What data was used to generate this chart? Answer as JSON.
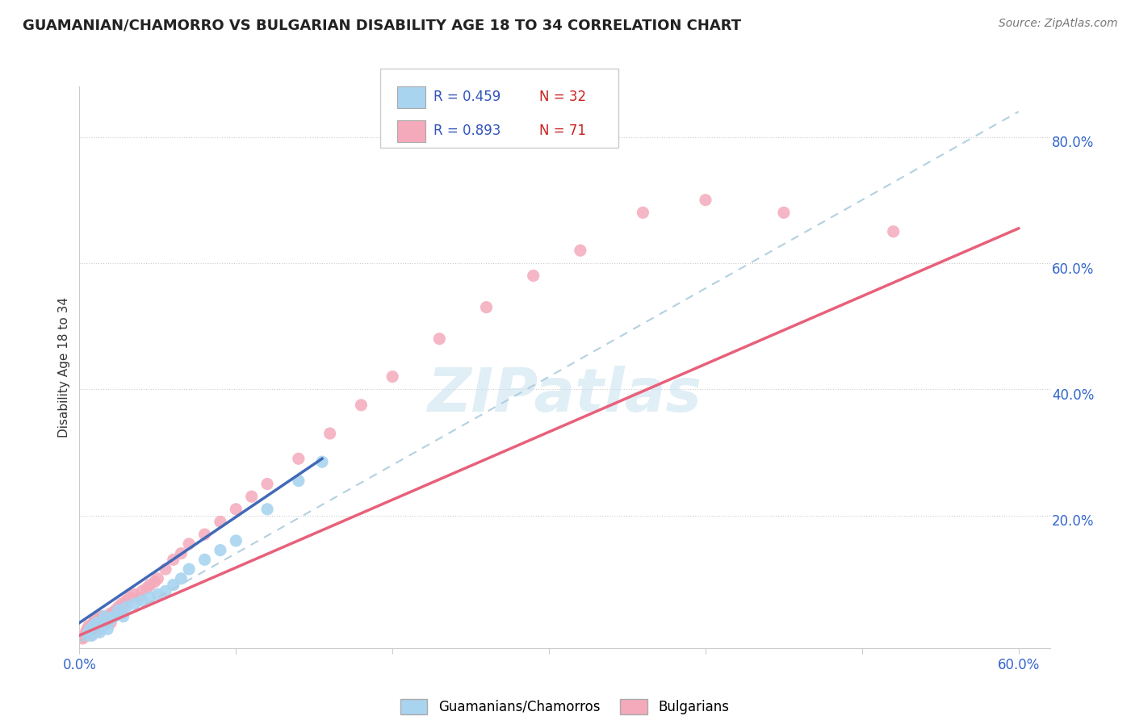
{
  "title": "GUAMANIAN/CHAMORRO VS BULGARIAN DISABILITY AGE 18 TO 34 CORRELATION CHART",
  "source": "Source: ZipAtlas.com",
  "ylabel": "Disability Age 18 to 34",
  "xlim": [
    0.0,
    0.62
  ],
  "ylim": [
    -0.01,
    0.88
  ],
  "xticks": [
    0.0,
    0.1,
    0.2,
    0.3,
    0.4,
    0.5,
    0.6
  ],
  "xtick_labels": [
    "0.0%",
    "",
    "",
    "",
    "",
    "",
    "60.0%"
  ],
  "yticks_right": [
    0.2,
    0.4,
    0.6,
    0.8
  ],
  "ytick_labels_right": [
    "20.0%",
    "40.0%",
    "60.0%",
    "80.0%"
  ],
  "background_color": "#ffffff",
  "guamanian_color": "#A8D4F0",
  "bulgarian_color": "#F4AABB",
  "guamanian_line_color": "#4169B8",
  "bulgarian_line_color": "#E8607A",
  "dashed_line_color": "#AACCDD",
  "legend_r_guamanian": "R = 0.459",
  "legend_n_guamanian": "N = 32",
  "legend_r_bulgarian": "R = 0.893",
  "legend_n_bulgarian": "N = 71",
  "watermark": "ZIPatlas",
  "r_color": "#3355BB",
  "n_color": "#CC2222",
  "guamanian_points_x": [
    0.005,
    0.006,
    0.007,
    0.008,
    0.009,
    0.01,
    0.011,
    0.012,
    0.013,
    0.015,
    0.016,
    0.017,
    0.018,
    0.02,
    0.022,
    0.025,
    0.028,
    0.03,
    0.035,
    0.04,
    0.045,
    0.05,
    0.055,
    0.06,
    0.065,
    0.07,
    0.08,
    0.09,
    0.1,
    0.12,
    0.14,
    0.155
  ],
  "guamanian_points_y": [
    0.01,
    0.015,
    0.02,
    0.01,
    0.025,
    0.02,
    0.03,
    0.025,
    0.015,
    0.025,
    0.04,
    0.03,
    0.02,
    0.035,
    0.04,
    0.05,
    0.04,
    0.055,
    0.06,
    0.065,
    0.07,
    0.075,
    0.08,
    0.09,
    0.1,
    0.115,
    0.13,
    0.145,
    0.16,
    0.21,
    0.255,
    0.285
  ],
  "bulgarian_points_x": [
    0.002,
    0.003,
    0.004,
    0.004,
    0.005,
    0.005,
    0.006,
    0.006,
    0.007,
    0.007,
    0.008,
    0.008,
    0.009,
    0.009,
    0.01,
    0.01,
    0.01,
    0.011,
    0.011,
    0.012,
    0.012,
    0.013,
    0.013,
    0.014,
    0.014,
    0.015,
    0.015,
    0.016,
    0.016,
    0.017,
    0.018,
    0.018,
    0.019,
    0.02,
    0.02,
    0.021,
    0.022,
    0.023,
    0.025,
    0.027,
    0.028,
    0.03,
    0.032,
    0.035,
    0.038,
    0.04,
    0.043,
    0.045,
    0.048,
    0.05,
    0.055,
    0.06,
    0.065,
    0.07,
    0.08,
    0.09,
    0.1,
    0.11,
    0.12,
    0.14,
    0.16,
    0.18,
    0.2,
    0.23,
    0.26,
    0.29,
    0.32,
    0.36,
    0.4,
    0.45,
    0.52
  ],
  "bulgarian_points_y": [
    0.005,
    0.008,
    0.01,
    0.015,
    0.01,
    0.02,
    0.015,
    0.025,
    0.01,
    0.02,
    0.015,
    0.025,
    0.02,
    0.03,
    0.015,
    0.025,
    0.035,
    0.02,
    0.03,
    0.025,
    0.035,
    0.02,
    0.03,
    0.025,
    0.04,
    0.025,
    0.035,
    0.03,
    0.04,
    0.035,
    0.03,
    0.04,
    0.035,
    0.03,
    0.045,
    0.04,
    0.045,
    0.05,
    0.055,
    0.06,
    0.055,
    0.065,
    0.07,
    0.075,
    0.07,
    0.08,
    0.085,
    0.09,
    0.095,
    0.1,
    0.115,
    0.13,
    0.14,
    0.155,
    0.17,
    0.19,
    0.21,
    0.23,
    0.25,
    0.29,
    0.33,
    0.375,
    0.42,
    0.48,
    0.53,
    0.58,
    0.62,
    0.68,
    0.7,
    0.68,
    0.65
  ],
  "guam_line_x": [
    0.0,
    0.155
  ],
  "guam_line_y": [
    0.03,
    0.29
  ],
  "bulg_line_x": [
    0.0,
    0.6
  ],
  "bulg_line_y": [
    0.01,
    0.655
  ],
  "dashed_line_x": [
    0.0,
    0.6
  ],
  "dashed_line_y": [
    0.0,
    0.84
  ]
}
